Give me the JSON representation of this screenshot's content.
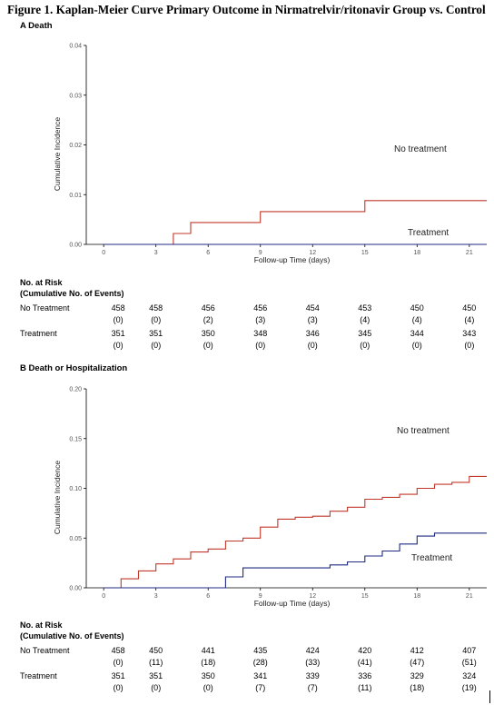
{
  "figure": {
    "title": "Figure 1. Kaplan-Meier Curve Primary Outcome in Nirmatrelvir/ritonavir Group vs. Control"
  },
  "chart_data": [
    {
      "type": "line",
      "step": true,
      "panel_label": "A  Death",
      "xlabel": "Follow-up Time (days)",
      "ylabel": "Cumulative Incidence",
      "xlim": [
        -1,
        22
      ],
      "ylim": [
        0,
        0.04
      ],
      "xticks": [
        0,
        3,
        6,
        9,
        12,
        15,
        18,
        21
      ],
      "yticks": [
        "0.00",
        "0.01",
        "0.02",
        "0.03",
        "0.04"
      ],
      "grid": false,
      "series": [
        {
          "name": "No treatment",
          "color": "#c0392b",
          "x": [
            0,
            4,
            5,
            9,
            15,
            22
          ],
          "y": [
            0,
            0.0022,
            0.0044,
            0.0066,
            0.0088,
            0.0088
          ]
        },
        {
          "name": "Treatment",
          "color": "#1f2a80",
          "x": [
            0,
            22
          ],
          "y": [
            0,
            0
          ]
        }
      ],
      "risk_table": {
        "header1": "No. at Risk",
        "header2": "(Cumulative No. of Events)",
        "times": [
          0,
          3,
          6,
          9,
          12,
          15,
          18,
          21
        ],
        "rows": [
          {
            "label": "No Treatment",
            "at_risk": [
              "458",
              "458",
              "456",
              "456",
              "454",
              "453",
              "450",
              "450"
            ],
            "events": [
              "(0)",
              "(0)",
              "(2)",
              "(3)",
              "(3)",
              "(4)",
              "(4)",
              "(4)"
            ]
          },
          {
            "label": "Treatment",
            "at_risk": [
              "351",
              "351",
              "350",
              "348",
              "346",
              "345",
              "344",
              "343"
            ],
            "events": [
              "(0)",
              "(0)",
              "(0)",
              "(0)",
              "(0)",
              "(0)",
              "(0)",
              "(0)"
            ]
          }
        ]
      }
    },
    {
      "type": "line",
      "step": true,
      "panel_label": "B  Death or Hospitalization",
      "xlabel": "Follow-up Time (days)",
      "ylabel": "Cumulative Incidence",
      "xlim": [
        -1,
        22
      ],
      "ylim": [
        0,
        0.2
      ],
      "xticks": [
        0,
        3,
        6,
        9,
        12,
        15,
        18,
        21
      ],
      "yticks": [
        "0.00",
        "0.05",
        "0.10",
        "0.15",
        "0.20"
      ],
      "grid": false,
      "series": [
        {
          "name": "No treatment",
          "color": "#c0392b",
          "x": [
            0,
            1,
            2,
            3,
            4,
            5,
            6,
            7,
            8,
            9,
            10,
            11,
            12,
            13,
            14,
            15,
            16,
            17,
            18,
            19,
            20,
            21,
            22
          ],
          "y": [
            0,
            0.009,
            0.017,
            0.024,
            0.029,
            0.036,
            0.039,
            0.047,
            0.05,
            0.061,
            0.069,
            0.071,
            0.072,
            0.077,
            0.081,
            0.089,
            0.091,
            0.094,
            0.1,
            0.104,
            0.106,
            0.112,
            0.112
          ]
        },
        {
          "name": "Treatment",
          "color": "#1f2a80",
          "x": [
            0,
            7,
            8,
            12,
            13,
            14,
            15,
            16,
            17,
            18,
            19,
            22
          ],
          "y": [
            0,
            0.011,
            0.02,
            0.02,
            0.023,
            0.026,
            0.032,
            0.037,
            0.044,
            0.052,
            0.055,
            0.055
          ]
        }
      ],
      "risk_table": {
        "header1": "No. at Risk",
        "header2": "(Cumulative No. of Events)",
        "times": [
          0,
          3,
          6,
          9,
          12,
          15,
          18,
          21
        ],
        "rows": [
          {
            "label": "No Treatment",
            "at_risk": [
              "458",
              "450",
              "441",
              "435",
              "424",
              "420",
              "412",
              "407"
            ],
            "events": [
              "(0)",
              "(11)",
              "(18)",
              "(28)",
              "(33)",
              "(41)",
              "(47)",
              "(51)"
            ]
          },
          {
            "label": "Treatment",
            "at_risk": [
              "351",
              "351",
              "350",
              "341",
              "339",
              "336",
              "329",
              "324"
            ],
            "events": [
              "(0)",
              "(0)",
              "(0)",
              "(7)",
              "(7)",
              "(11)",
              "(18)",
              "(19)"
            ]
          }
        ]
      }
    }
  ]
}
